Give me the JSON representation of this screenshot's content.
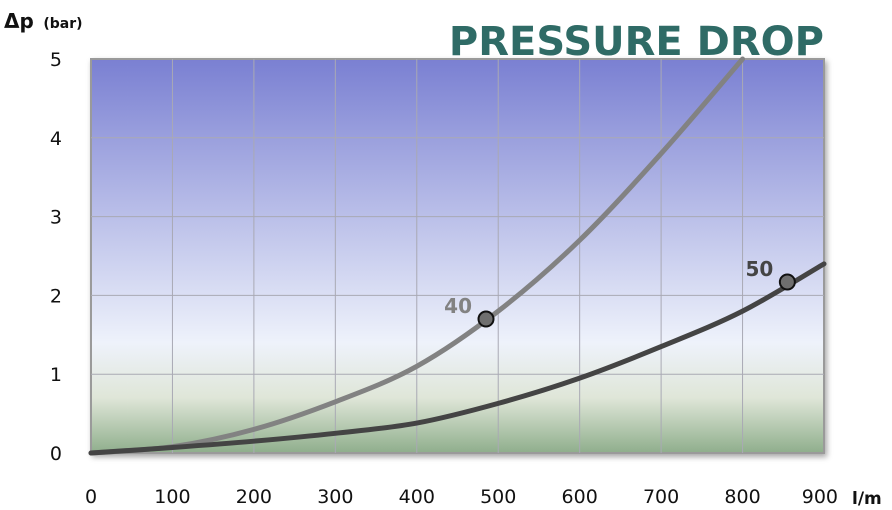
{
  "chart_data": {
    "type": "line",
    "title": "PRESSURE DROP",
    "ylabel_symbol": "Δp",
    "ylabel_unit": "(bar)",
    "xlabel": "l/m",
    "xlim": [
      0,
      900
    ],
    "ylim": [
      0,
      5
    ],
    "x_ticks": [
      "0",
      "100",
      "200",
      "300",
      "400",
      "500",
      "600",
      "700",
      "800",
      "900"
    ],
    "y_ticks": [
      "0",
      "1",
      "2",
      "3",
      "4",
      "5"
    ],
    "grid": true,
    "series": [
      {
        "name": "40",
        "color": "#828282",
        "x": [
          0,
          100,
          200,
          300,
          400,
          500,
          600,
          700,
          800
        ],
        "y": [
          0,
          0.08,
          0.3,
          0.65,
          1.1,
          1.8,
          2.7,
          3.8,
          5.0
        ],
        "marker": {
          "x": 485,
          "y": 1.7
        }
      },
      {
        "name": "50",
        "color": "#444444",
        "x": [
          0,
          100,
          200,
          300,
          400,
          500,
          600,
          700,
          800,
          900
        ],
        "y": [
          0,
          0.07,
          0.15,
          0.25,
          0.38,
          0.63,
          0.95,
          1.35,
          1.8,
          2.4
        ],
        "marker": {
          "x": 855,
          "y": 2.17
        }
      }
    ],
    "colors": {
      "plot_top": "#7a80d2",
      "plot_mid": "#eef2fb",
      "plot_bottom": "#8fae8c",
      "title": "#2f6b66"
    }
  }
}
